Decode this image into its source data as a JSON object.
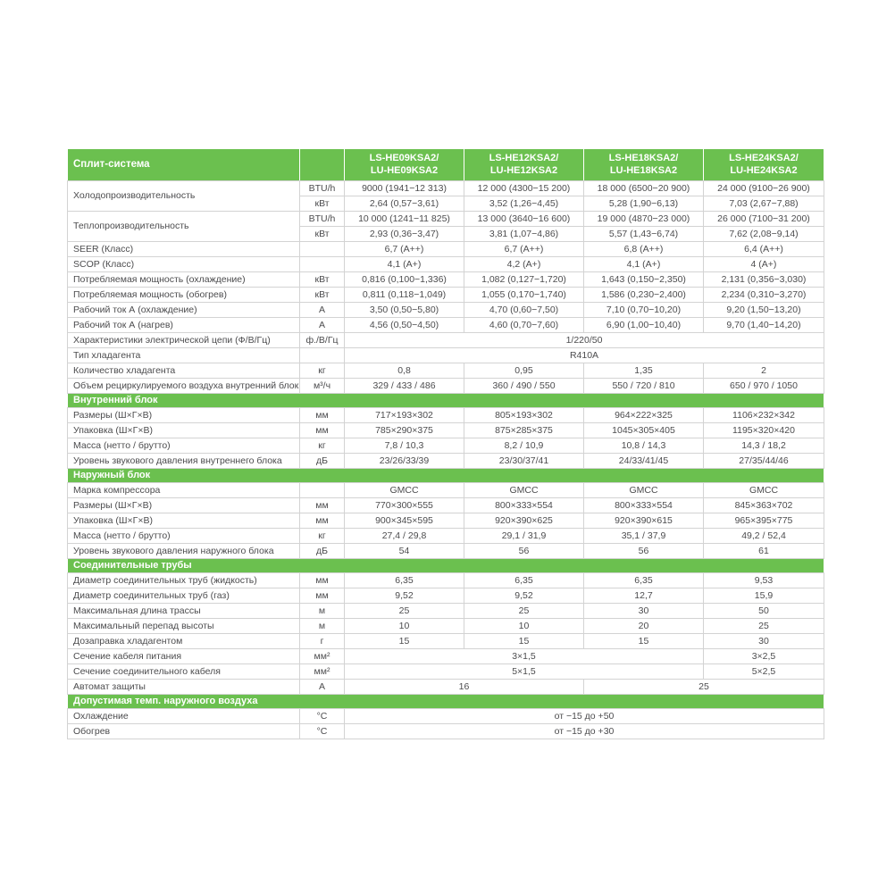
{
  "accent_color": "#6bc04f",
  "table": {
    "header": {
      "title": "Сплит-система",
      "models": [
        [
          "LS-HE09KSA2/",
          "LU-HE09KSA2"
        ],
        [
          "LS-HE12KSA2/",
          "LU-HE12KSA2"
        ],
        [
          "LS-HE18KSA2/",
          "LU-HE18KSA2"
        ],
        [
          "LS-HE24KSA2/",
          "LU-HE24KSA2"
        ]
      ]
    },
    "rows": [
      {
        "type": "data",
        "label": "Холодопроизводительность",
        "label_rowspan": 2,
        "unit": "BTU/h",
        "values": [
          "9000 (1941−12 313)",
          "12 000 (4300−15 200)",
          "18 000 (6500−20 900)",
          "24 000 (9100−26 900)"
        ]
      },
      {
        "type": "data",
        "skip_label": true,
        "unit": "кВт",
        "values": [
          "2,64 (0,57−3,61)",
          "3,52 (1,26−4,45)",
          "5,28 (1,90−6,13)",
          "7,03 (2,67−7,88)"
        ]
      },
      {
        "type": "data",
        "label": "Теплопроизводительность",
        "label_rowspan": 2,
        "unit": "BTU/h",
        "values": [
          "10 000 (1241−11 825)",
          "13 000 (3640−16 600)",
          "19 000 (4870−23 000)",
          "26 000 (7100−31 200)"
        ]
      },
      {
        "type": "data",
        "skip_label": true,
        "unit": "кВт",
        "values": [
          "2,93 (0,36−3,47)",
          "3,81 (1,07−4,86)",
          "5,57 (1,43−6,74)",
          "7,62 (2,08−9,14)"
        ]
      },
      {
        "type": "data",
        "label": "SEER (Класс)",
        "unit": "",
        "values": [
          "6,7 (A++)",
          "6,7 (A++)",
          "6,8 (A++)",
          "6,4 (A++)"
        ]
      },
      {
        "type": "data",
        "label": "SCOP (Класс)",
        "unit": "",
        "values": [
          "4,1 (A+)",
          "4,2 (A+)",
          "4,1 (A+)",
          "4 (A+)"
        ]
      },
      {
        "type": "data",
        "label": "Потребляемая мощность (охлаждение)",
        "unit": "кВт",
        "values": [
          "0,816 (0,100−1,336)",
          "1,082 (0,127−1,720)",
          "1,643 (0,150−2,350)",
          "2,131 (0,356−3,030)"
        ]
      },
      {
        "type": "data",
        "label": "Потребляемая мощность (обогрев)",
        "unit": "кВт",
        "values": [
          "0,811 (0,118−1,049)",
          "1,055 (0,170−1,740)",
          "1,586 (0,230−2,400)",
          "2,234 (0,310−3,270)"
        ]
      },
      {
        "type": "data",
        "label": "Рабочий ток А (охлаждение)",
        "unit": "А",
        "values": [
          "3,50 (0,50−5,80)",
          "4,70 (0,60−7,50)",
          "7,10 (0,70−10,20)",
          "9,20 (1,50−13,20)"
        ]
      },
      {
        "type": "data",
        "label": "Рабочий ток А (нагрев)",
        "unit": "А",
        "values": [
          "4,56 (0,50−4,50)",
          "4,60 (0,70−7,60)",
          "6,90 (1,00−10,40)",
          "9,70 (1,40−14,20)"
        ]
      },
      {
        "type": "data",
        "label": "Характеристики электрической цепи (Ф/В/Гц)",
        "unit": "ф./В/Гц",
        "values": [
          {
            "text": "1/220/50",
            "span": 4
          }
        ]
      },
      {
        "type": "data",
        "label": "Тип хладагента",
        "unit": "",
        "values": [
          {
            "text": "R410A",
            "span": 4
          }
        ]
      },
      {
        "type": "data",
        "label": "Количество хладагента",
        "unit": "кг",
        "values": [
          "0,8",
          "0,95",
          "1,35",
          "2"
        ]
      },
      {
        "type": "data",
        "label": "Объем рециркулируемого воздуха внутренний блок",
        "unit": "м³/ч",
        "values": [
          "329 / 433 / 486",
          "360 / 490 / 550",
          "550 / 720 / 810",
          "650 / 970 / 1050"
        ]
      },
      {
        "type": "section",
        "label": "Внутренний блок"
      },
      {
        "type": "data",
        "label": "Размеры (Ш×Г×В)",
        "unit": "мм",
        "values": [
          "717×193×302",
          "805×193×302",
          "964×222×325",
          "1106×232×342"
        ]
      },
      {
        "type": "data",
        "label": "Упаковка (Ш×Г×В)",
        "unit": "мм",
        "values": [
          "785×290×375",
          "875×285×375",
          "1045×305×405",
          "1195×320×420"
        ]
      },
      {
        "type": "data",
        "label": "Масса (нетто / брутто)",
        "unit": "кг",
        "values": [
          "7,8 / 10,3",
          "8,2 / 10,9",
          "10,8 / 14,3",
          "14,3 / 18,2"
        ]
      },
      {
        "type": "data",
        "label": "Уровень звукового давления внутреннего блока",
        "unit": "дБ",
        "values": [
          "23/26/33/39",
          "23/30/37/41",
          "24/33/41/45",
          "27/35/44/46"
        ]
      },
      {
        "type": "section",
        "label": "Наружный блок"
      },
      {
        "type": "data",
        "label": "Марка компрессора",
        "unit": "",
        "values": [
          "GMCC",
          "GMCC",
          "GMCC",
          "GMCC"
        ]
      },
      {
        "type": "data",
        "label": "Размеры (Ш×Г×В)",
        "unit": "мм",
        "values": [
          "770×300×555",
          "800×333×554",
          "800×333×554",
          "845×363×702"
        ]
      },
      {
        "type": "data",
        "label": "Упаковка (Ш×Г×В)",
        "unit": "мм",
        "values": [
          "900×345×595",
          "920×390×625",
          "920×390×615",
          "965×395×775"
        ]
      },
      {
        "type": "data",
        "label": "Масса (нетто / брутто)",
        "unit": "кг",
        "values": [
          "27,4 / 29,8",
          "29,1 / 31,9",
          "35,1 / 37,9",
          "49,2 / 52,4"
        ]
      },
      {
        "type": "data",
        "label": "Уровень звукового давления наружного блока",
        "unit": "дБ",
        "values": [
          "54",
          "56",
          "56",
          "61"
        ]
      },
      {
        "type": "section",
        "label": "Соединительные трубы"
      },
      {
        "type": "data",
        "label": "Диаметр соединительных труб (жидкость)",
        "unit": "мм",
        "values": [
          "6,35",
          "6,35",
          "6,35",
          "9,53"
        ]
      },
      {
        "type": "data",
        "label": "Диаметр соединительных труб (газ)",
        "unit": "мм",
        "values": [
          "9,52",
          "9,52",
          "12,7",
          "15,9"
        ]
      },
      {
        "type": "data",
        "label": "Максимальная длина трассы",
        "unit": "м",
        "values": [
          "25",
          "25",
          "30",
          "50"
        ]
      },
      {
        "type": "data",
        "label": "Максимальный перепад высоты",
        "unit": "м",
        "values": [
          "10",
          "10",
          "20",
          "25"
        ]
      },
      {
        "type": "data",
        "label": "Дозаправка хладагентом",
        "unit": "г",
        "values": [
          "15",
          "15",
          "15",
          "30"
        ]
      },
      {
        "type": "data",
        "label": "Сечение кабеля питания",
        "unit": "мм²",
        "values": [
          {
            "text": "3×1,5",
            "span": 3
          },
          {
            "text": "3×2,5",
            "span": 1
          }
        ]
      },
      {
        "type": "data",
        "label": "Сечение соединительного кабеля",
        "unit": "мм²",
        "values": [
          {
            "text": "5×1,5",
            "span": 3
          },
          {
            "text": "5×2,5",
            "span": 1
          }
        ]
      },
      {
        "type": "data",
        "label": "Автомат защиты",
        "unit": "А",
        "values": [
          {
            "text": "16",
            "span": 2
          },
          {
            "text": "25",
            "span": 2
          }
        ]
      },
      {
        "type": "section",
        "label": "Допустимая темп. наружного воздуха"
      },
      {
        "type": "data",
        "label": "Охлаждение",
        "unit": "°C",
        "values": [
          {
            "text": "от −15 до +50",
            "span": 4
          }
        ]
      },
      {
        "type": "data",
        "label": "Обогрев",
        "unit": "°C",
        "values": [
          {
            "text": "от −15 до +30",
            "span": 4
          }
        ]
      }
    ]
  }
}
